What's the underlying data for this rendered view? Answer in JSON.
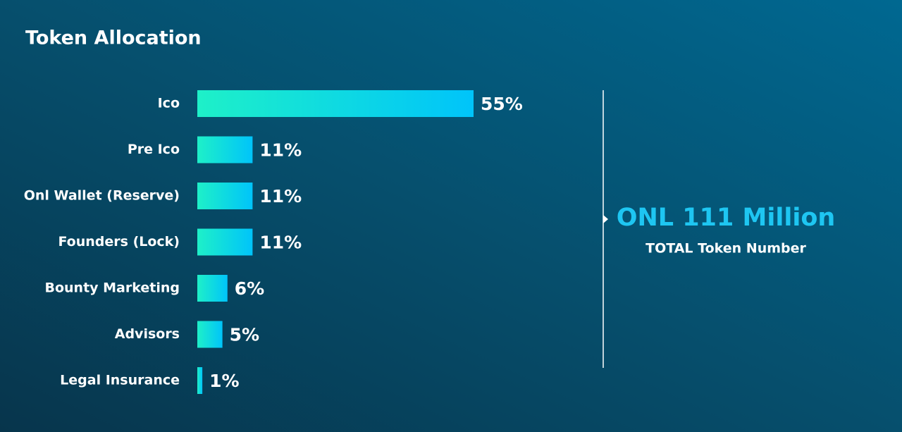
{
  "chart_data": {
    "type": "bar",
    "orientation": "horizontal",
    "title": "Token Allocation",
    "categories": [
      "Ico",
      "Pre Ico",
      "Onl Wallet (Reserve)",
      "Founders (Lock)",
      "Bounty Marketing",
      "Advisors",
      "Legal Insurance"
    ],
    "values": [
      55,
      11,
      11,
      11,
      6,
      5,
      1
    ],
    "value_labels": [
      "55%",
      "11%",
      "11%",
      "11%",
      "6%",
      "5%",
      "1%"
    ],
    "color": [
      "#1ef0c8",
      "#00c4fa"
    ],
    "annotation": {
      "headline": "ONL 111 Million",
      "caption": "TOTAL Token Number"
    }
  }
}
